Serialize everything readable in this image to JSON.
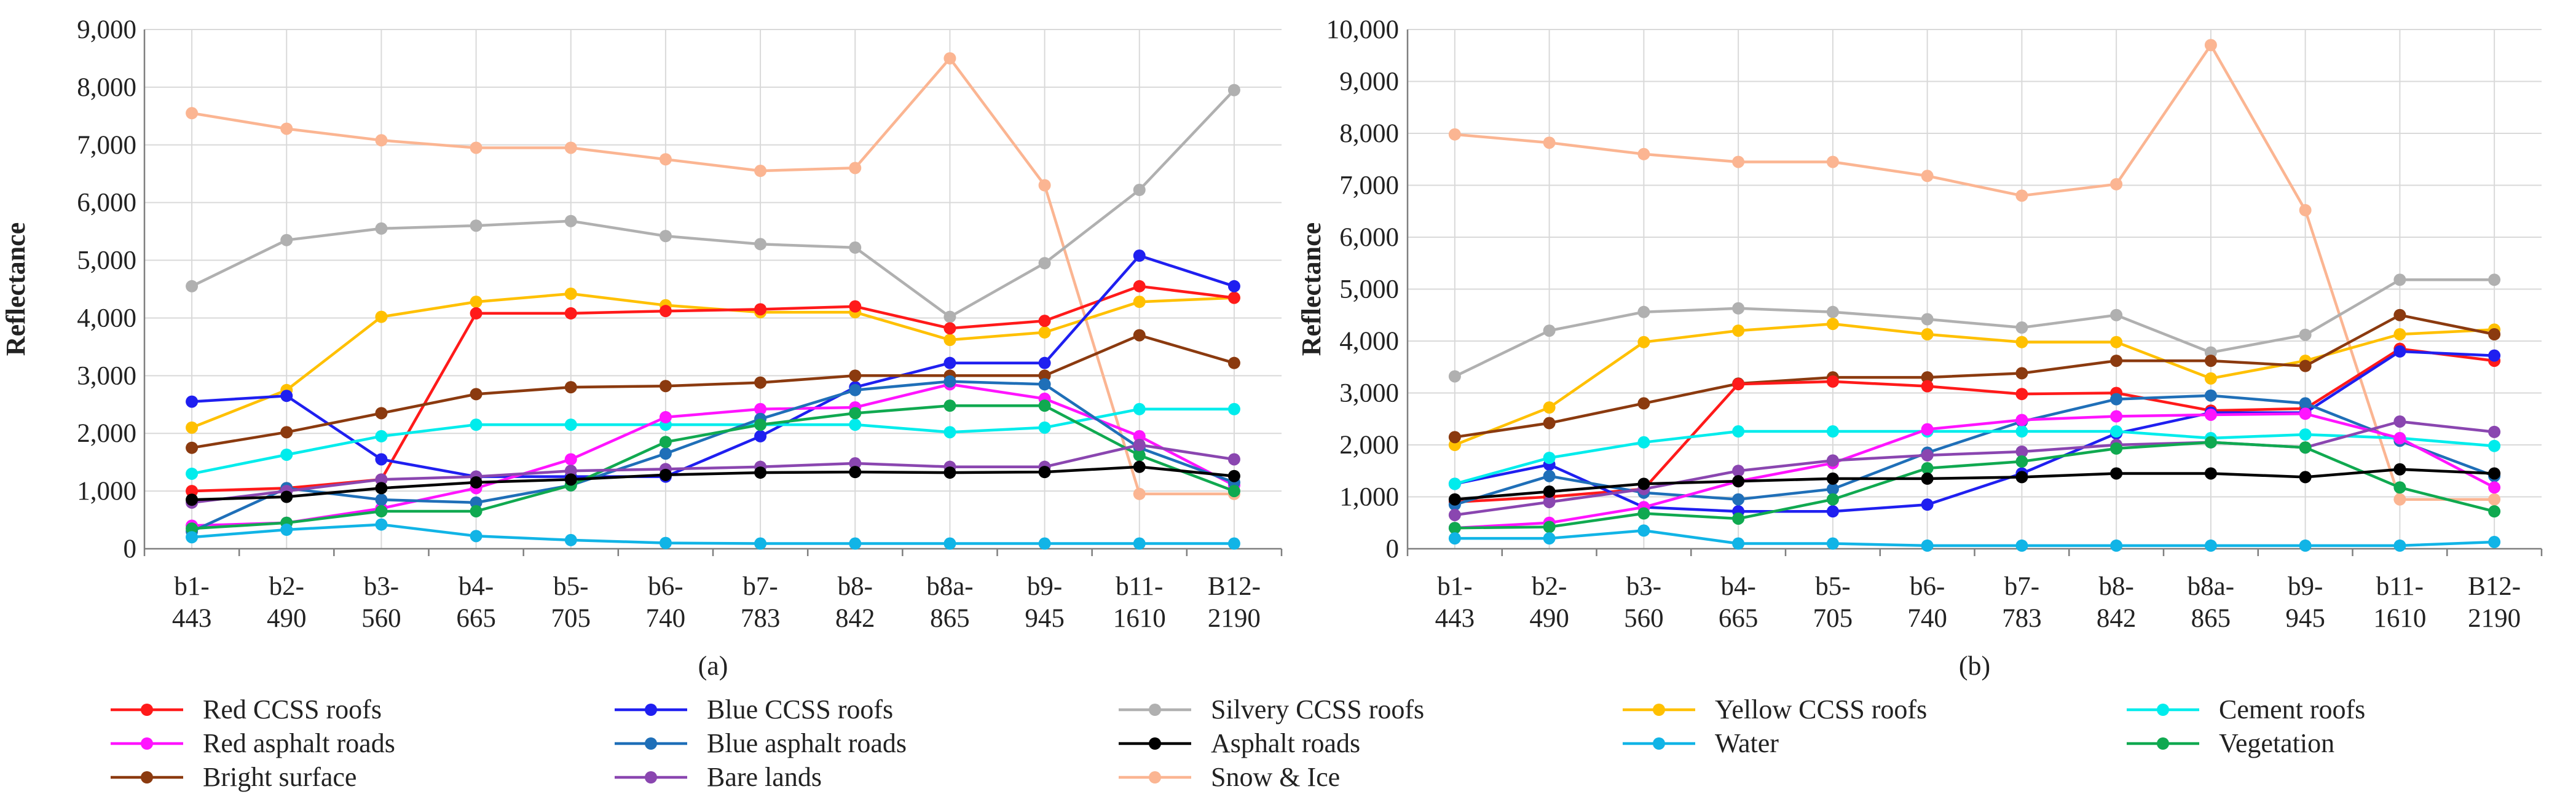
{
  "colors": {
    "Red CCSS roofs": "#ff1a1a",
    "Blue CCSS roofs": "#1f1ff0",
    "Silvery CCSS roofs": "#b0b0b0",
    "Yellow CCSS roofs": "#ffc000",
    "Cement roofs": "#00ecec",
    "Red asphalt roads": "#ff14ff",
    "Blue asphalt roads": "#1f6fb8",
    "Asphalt roads": "#000000",
    "Water": "#11b4e6",
    "Vegetation": "#10a950",
    "Bright surface": "#8b3a0f",
    "Bare lands": "#8a46b0",
    "Snow & Ice": "#fbb592",
    "grid": "#d9d9d9",
    "axis": "#7f7f7f"
  },
  "chart_data": [
    {
      "type": "line",
      "panel_label": "(a)",
      "ylabel": "Reflectance",
      "ylim": [
        0,
        9000
      ],
      "y_ticks": [
        "0",
        "1,000",
        "2,000",
        "3,000",
        "4,000",
        "5,000",
        "6,000",
        "7,000",
        "8,000",
        "9,000"
      ],
      "categories": [
        "b1-443",
        "b2-490",
        "b3-560",
        "b4-665",
        "b5-705",
        "b6-740",
        "b7-783",
        "b8-842",
        "b8a-865",
        "b9-945",
        "b11-1610",
        "B12-2190"
      ],
      "category_lines": [
        [
          "b1-",
          "443"
        ],
        [
          "b2-",
          "490"
        ],
        [
          "b3-",
          "560"
        ],
        [
          "b4-",
          "665"
        ],
        [
          "b5-",
          "705"
        ],
        [
          "b6-",
          "740"
        ],
        [
          "b7-",
          "783"
        ],
        [
          "b8-",
          "842"
        ],
        [
          "b8a-",
          "865"
        ],
        [
          "b9-",
          "945"
        ],
        [
          "b11-",
          "1610"
        ],
        [
          "B12-",
          "2190"
        ]
      ],
      "grid": true,
      "series": [
        {
          "name": "Snow & Ice",
          "values": [
            7550,
            7280,
            7080,
            6950,
            6950,
            6750,
            6550,
            6600,
            8500,
            6300,
            950,
            950
          ]
        },
        {
          "name": "Silvery CCSS roofs",
          "values": [
            4550,
            5350,
            5550,
            5600,
            5680,
            5420,
            5280,
            5220,
            4020,
            4950,
            6220,
            7950
          ]
        },
        {
          "name": "Yellow CCSS roofs",
          "values": [
            2100,
            2750,
            4020,
            4280,
            4420,
            4220,
            4100,
            4100,
            3620,
            3750,
            4280,
            4350
          ]
        },
        {
          "name": "Red CCSS roofs",
          "values": [
            1000,
            1050,
            1200,
            4080,
            4080,
            4120,
            4150,
            4200,
            3820,
            3950,
            4550,
            4350
          ]
        },
        {
          "name": "Blue CCSS roofs",
          "values": [
            2550,
            2650,
            1550,
            1250,
            1250,
            1250,
            1950,
            2800,
            3220,
            3220,
            5080,
            4550
          ]
        },
        {
          "name": "Bright surface",
          "values": [
            1750,
            2020,
            2350,
            2680,
            2800,
            2820,
            2880,
            3000,
            3000,
            3000,
            3700,
            3220
          ]
        },
        {
          "name": "Cement roofs",
          "values": [
            1300,
            1630,
            1950,
            2150,
            2150,
            2150,
            2150,
            2150,
            2020,
            2100,
            2420,
            2420
          ]
        },
        {
          "name": "Red asphalt roads",
          "values": [
            400,
            450,
            700,
            1050,
            1550,
            2280,
            2420,
            2450,
            2850,
            2600,
            1950,
            1100
          ]
        },
        {
          "name": "Blue asphalt roads",
          "values": [
            300,
            1050,
            850,
            800,
            1100,
            1650,
            2250,
            2750,
            2900,
            2850,
            1750,
            1150
          ]
        },
        {
          "name": "Vegetation",
          "values": [
            350,
            450,
            650,
            650,
            1100,
            1850,
            2150,
            2350,
            2480,
            2480,
            1620,
            1000
          ]
        },
        {
          "name": "Bare lands",
          "values": [
            800,
            1000,
            1200,
            1250,
            1350,
            1380,
            1420,
            1480,
            1420,
            1420,
            1800,
            1550
          ]
        },
        {
          "name": "Asphalt roads",
          "values": [
            850,
            900,
            1050,
            1150,
            1200,
            1280,
            1320,
            1330,
            1320,
            1330,
            1420,
            1260
          ]
        },
        {
          "name": "Water",
          "values": [
            200,
            330,
            420,
            220,
            150,
            100,
            90,
            90,
            90,
            90,
            90,
            90
          ]
        }
      ]
    },
    {
      "type": "line",
      "panel_label": "(b)",
      "ylabel": "Reflectance",
      "ylim": [
        0,
        10000
      ],
      "y_ticks": [
        "0",
        "1,000",
        "2,000",
        "3,000",
        "4,000",
        "5,000",
        "6,000",
        "7,000",
        "8,000",
        "9,000",
        "10,000"
      ],
      "categories": [
        "b1-443",
        "b2-490",
        "b3-560",
        "b4-665",
        "b5-705",
        "b6-740",
        "b7-783",
        "b8-842",
        "b8a-865",
        "b9-945",
        "b11-1610",
        "B12-2190"
      ],
      "category_lines": [
        [
          "b1-",
          "443"
        ],
        [
          "b2-",
          "490"
        ],
        [
          "b3-",
          "560"
        ],
        [
          "b4-",
          "665"
        ],
        [
          "b5-",
          "705"
        ],
        [
          "b6-",
          "740"
        ],
        [
          "b7-",
          "783"
        ],
        [
          "b8-",
          "842"
        ],
        [
          "b8a-",
          "865"
        ],
        [
          "b9-",
          "945"
        ],
        [
          "b11-",
          "1610"
        ],
        [
          "B12-",
          "2190"
        ]
      ],
      "grid": true,
      "series": [
        {
          "name": "Snow & Ice",
          "values": [
            7980,
            7820,
            7600,
            7450,
            7450,
            7180,
            6800,
            7020,
            9700,
            6520,
            950,
            950
          ]
        },
        {
          "name": "Silvery CCSS roofs",
          "values": [
            3320,
            4200,
            4560,
            4630,
            4560,
            4420,
            4260,
            4500,
            3780,
            4120,
            5180,
            5180
          ]
        },
        {
          "name": "Yellow CCSS roofs",
          "values": [
            2000,
            2720,
            3980,
            4200,
            4330,
            4130,
            3980,
            3980,
            3280,
            3620,
            4130,
            4220
          ]
        },
        {
          "name": "Bright surface",
          "values": [
            2150,
            2420,
            2800,
            3180,
            3300,
            3300,
            3380,
            3620,
            3620,
            3520,
            4500,
            4130
          ]
        },
        {
          "name": "Red CCSS roofs",
          "values": [
            900,
            1000,
            1150,
            3170,
            3220,
            3130,
            2980,
            3000,
            2660,
            2700,
            3850,
            3620
          ]
        },
        {
          "name": "Blue CCSS roofs",
          "values": [
            1250,
            1620,
            800,
            720,
            720,
            850,
            1450,
            2220,
            2620,
            2620,
            3800,
            3720
          ]
        },
        {
          "name": "Blue asphalt roads",
          "values": [
            850,
            1400,
            1080,
            950,
            1150,
            1850,
            2450,
            2880,
            2950,
            2800,
            2080,
            1400
          ]
        },
        {
          "name": "Cement roofs",
          "values": [
            1250,
            1750,
            2050,
            2260,
            2260,
            2260,
            2260,
            2260,
            2130,
            2200,
            2130,
            1980
          ]
        },
        {
          "name": "Red asphalt roads",
          "values": [
            400,
            500,
            800,
            1300,
            1650,
            2300,
            2480,
            2550,
            2580,
            2600,
            2130,
            1180
          ]
        },
        {
          "name": "Bare lands",
          "values": [
            650,
            900,
            1150,
            1500,
            1700,
            1800,
            1870,
            2000,
            2050,
            1950,
            2450,
            2250
          ]
        },
        {
          "name": "Vegetation",
          "values": [
            400,
            420,
            680,
            580,
            950,
            1550,
            1680,
            1930,
            2050,
            1950,
            1180,
            720
          ]
        },
        {
          "name": "Asphalt roads",
          "values": [
            950,
            1100,
            1250,
            1300,
            1350,
            1350,
            1380,
            1450,
            1450,
            1380,
            1530,
            1450
          ]
        },
        {
          "name": "Water",
          "values": [
            200,
            200,
            350,
            100,
            100,
            60,
            60,
            60,
            60,
            60,
            60,
            130
          ]
        }
      ]
    }
  ],
  "legend": {
    "rows": [
      [
        "Red CCSS roofs",
        "Blue CCSS roofs",
        "Silvery CCSS roofs",
        "Yellow CCSS roofs",
        "Cement roofs"
      ],
      [
        "Red asphalt roads",
        "Blue asphalt roads",
        "Asphalt roads",
        "Water",
        "Vegetation"
      ],
      [
        "Bright surface",
        "Bare lands",
        "Snow & Ice"
      ]
    ]
  }
}
